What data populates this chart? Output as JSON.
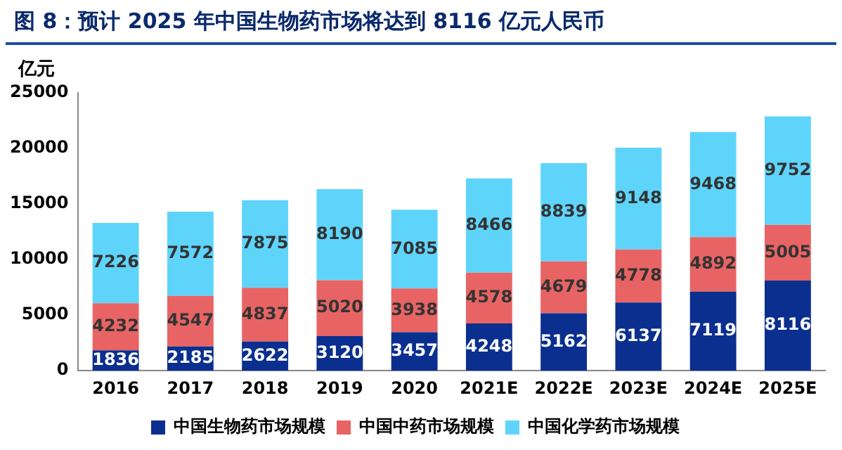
{
  "chart_data": {
    "type": "bar",
    "title": "图 8：预计 2025 年中国生物药市场将达到 8116 亿元人民币",
    "ylabel": "亿元",
    "categories": [
      "2016",
      "2017",
      "2018",
      "2019",
      "2020",
      "2021E",
      "2022E",
      "2023E",
      "2024E",
      "2025E"
    ],
    "series": [
      {
        "name": "中国生物药市场规模",
        "color": "#0b2f8f",
        "values": [
          1836,
          2185,
          2622,
          3120,
          3457,
          4248,
          5162,
          6137,
          7119,
          8116
        ]
      },
      {
        "name": "中国中药市场规模",
        "color": "#e86464",
        "values": [
          4232,
          4547,
          4837,
          5020,
          3938,
          4578,
          4679,
          4778,
          4892,
          5005
        ]
      },
      {
        "name": "中国化学药市场规模",
        "color": "#5fd4fb",
        "values": [
          7226,
          7572,
          7875,
          8190,
          7085,
          8466,
          8839,
          9148,
          9468,
          9752
        ]
      }
    ],
    "stacked": true,
    "data_labels": true,
    "ylim": [
      0,
      25000
    ],
    "yticks": [
      0,
      5000,
      10000,
      15000,
      20000,
      25000
    ],
    "grid": false,
    "legend": "bottom"
  }
}
